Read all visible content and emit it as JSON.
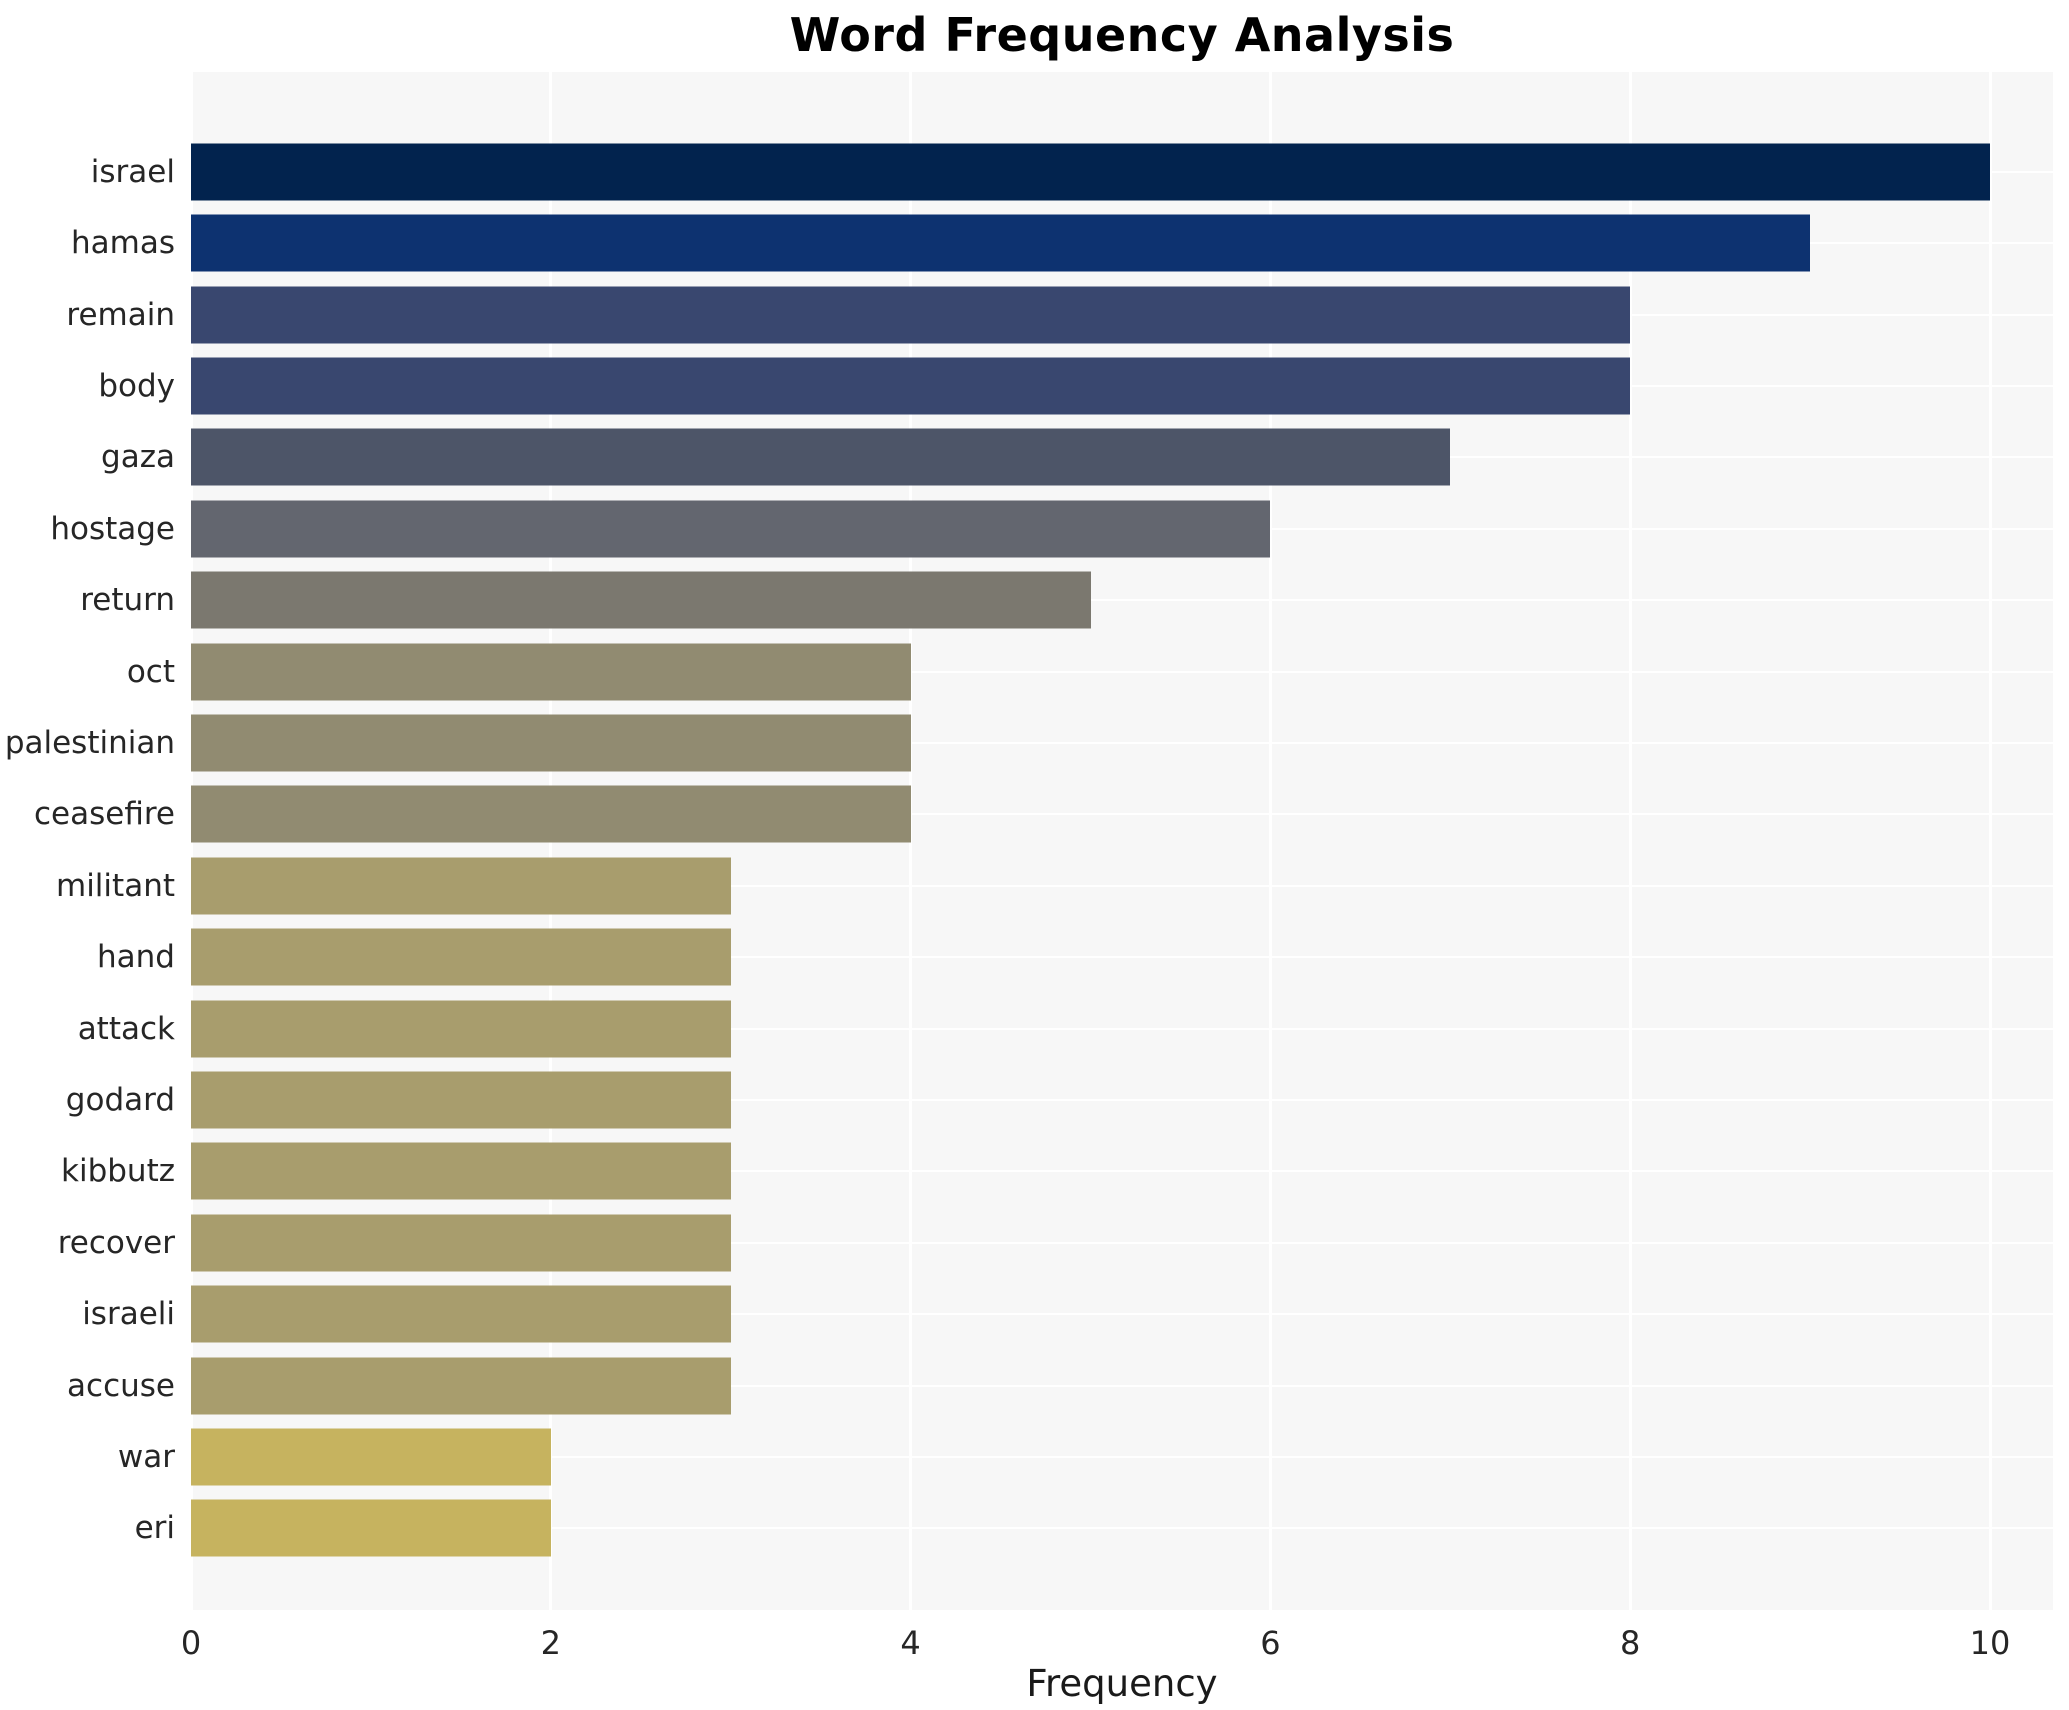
{
  "title": "Word Frequency Analysis",
  "axis": {
    "xlabel": "Frequency",
    "x_tick_labels": [
      "0",
      "2",
      "4",
      "6",
      "8",
      "10"
    ]
  },
  "colors": {
    "figure_background": "#ffffff",
    "plot_background": "#f7f7f7",
    "grid": "#ffffff",
    "text": "#262626"
  },
  "chart_data": {
    "type": "bar",
    "orientation": "horizontal",
    "title": "Word Frequency Analysis",
    "xlabel": "Frequency",
    "ylabel": "",
    "xlim": [
      0,
      10.35
    ],
    "x_ticks": [
      0,
      2,
      4,
      6,
      8,
      10
    ],
    "grid": true,
    "legend": false,
    "categories": [
      "israel",
      "hamas",
      "remain",
      "body",
      "gaza",
      "hostage",
      "return",
      "oct",
      "palestinian",
      "ceasefire",
      "militant",
      "hand",
      "attack",
      "godard",
      "kibbutz",
      "recover",
      "israeli",
      "accuse",
      "war",
      "eri"
    ],
    "values": [
      10,
      9,
      8,
      8,
      7,
      6,
      5,
      4,
      4,
      4,
      3,
      3,
      3,
      3,
      3,
      3,
      3,
      3,
      2,
      2
    ],
    "bar_colors": [
      "#02234e",
      "#0d3270",
      "#39476f",
      "#39476f",
      "#4d5568",
      "#63666f",
      "#7b786f",
      "#918b71",
      "#918b71",
      "#918b71",
      "#a89d6d",
      "#a89d6d",
      "#a89d6d",
      "#a89d6d",
      "#a89d6d",
      "#a89d6d",
      "#a89d6d",
      "#a89d6d",
      "#c6b35f",
      "#c6b35f"
    ]
  }
}
